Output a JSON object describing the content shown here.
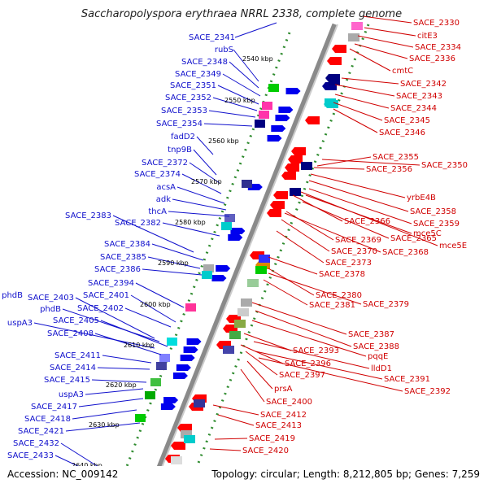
{
  "title": "Saccharopolyspora erythraea NRRL 2338, complete genome",
  "footer": {
    "accession": "Accession: NC_009142",
    "topology": "Topology: circular; Length: 8,212,805 bp; Genes: 7,259"
  },
  "scale_ticks": [
    "2540 kbp",
    "2550 kbp",
    "2560 kbp",
    "2570 kbp",
    "2580 kbp",
    "2590 kbp",
    "2600 kbp",
    "2610 kbp",
    "2620 kbp",
    "2630 kbp",
    "2640 kbp"
  ],
  "left_labels": [
    "SACE_2341",
    "rubS",
    "SACE_2348",
    "SACE_2349",
    "SACE_2351",
    "SACE_2352",
    "SACE_2353",
    "SACE_2354",
    "fadD2",
    "tnp9B",
    "SACE_2372",
    "SACE_2374",
    "acsA",
    "adk",
    "thcA",
    "SACE_2383",
    "SACE_2382",
    "SACE_2384",
    "SACE_2385",
    "SACE_2386",
    "SACE_2394",
    "SACE_2401",
    "phdB",
    "SACE_2403",
    "phdB",
    "SACE_2402",
    "uspA3",
    "SACE_2405",
    "SACE_2408",
    "SACE_2411",
    "SACE_2414",
    "SACE_2415",
    "uspA3",
    "SACE_2417",
    "SACE_2418",
    "SACE_2421",
    "SACE_2432",
    "SACE_2433"
  ],
  "right_labels": [
    "SACE_2330",
    "citE3",
    "SACE_2334",
    "SACE_2336",
    "cmtC",
    "SACE_2342",
    "SACE_2343",
    "SACE_2344",
    "SACE_2345",
    "SACE_2346",
    "SACE_2355",
    "SACE_2350",
    "SACE_2356",
    "yrbE4B",
    "SACE_2358",
    "SACE_2359",
    "SACE_2366",
    "mce5C",
    "SACE_2365",
    "mce5E",
    "SACE_2369",
    "SACE_2368",
    "SACE_2370",
    "SACE_2373",
    "SACE_2378",
    "SACE_2380",
    "SACE_2381",
    "SACE_2379",
    "SACE_2387",
    "SACE_2388",
    "pqqE",
    "SACE_2393",
    "lldD1",
    "SACE_2396",
    "SACE_2391",
    "SACE_2397",
    "SACE_2392",
    "prsA",
    "SACE_2400",
    "SACE_2412",
    "SACE_2413",
    "SACE_2419",
    "SACE_2420"
  ],
  "colors": {
    "plus_label": "#1010cc",
    "minus_label": "#d00000",
    "backbone": "#808080",
    "ticks": "#2e8b2e"
  }
}
